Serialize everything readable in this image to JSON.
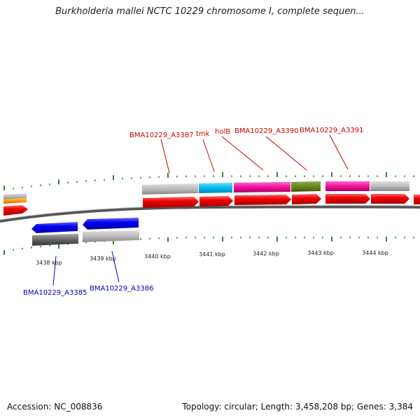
{
  "title": "Burkholderia mallei NCTC 10229 chromosome I, complete sequen...",
  "accession_label": "Accession: NC_008836",
  "summary_label": "Topology: circular; Length: 3,458,208 bp; Genes: 3,384",
  "kbp_ticks": [
    "3438 kbp",
    "3439 kbp",
    "3440 kbp",
    "3441 kbp",
    "3442 kbp",
    "3443 kbp",
    "3444 kbp"
  ],
  "forward_labels": [
    "BMA10229_A3387",
    "tmk",
    "holB",
    "BMA10229_A3390",
    "BMA10229_A3391"
  ],
  "reverse_labels": [
    "BMA10229_A3385",
    "BMA10229_A3386"
  ],
  "colors": {
    "forward_label": "#cc0000",
    "reverse_label": "#0000bb",
    "cds_forward": "#ee0000",
    "cds_reverse": "#0000ee",
    "gc_tick": "#006600",
    "backbone": "#777777"
  },
  "legend_note": ""
}
